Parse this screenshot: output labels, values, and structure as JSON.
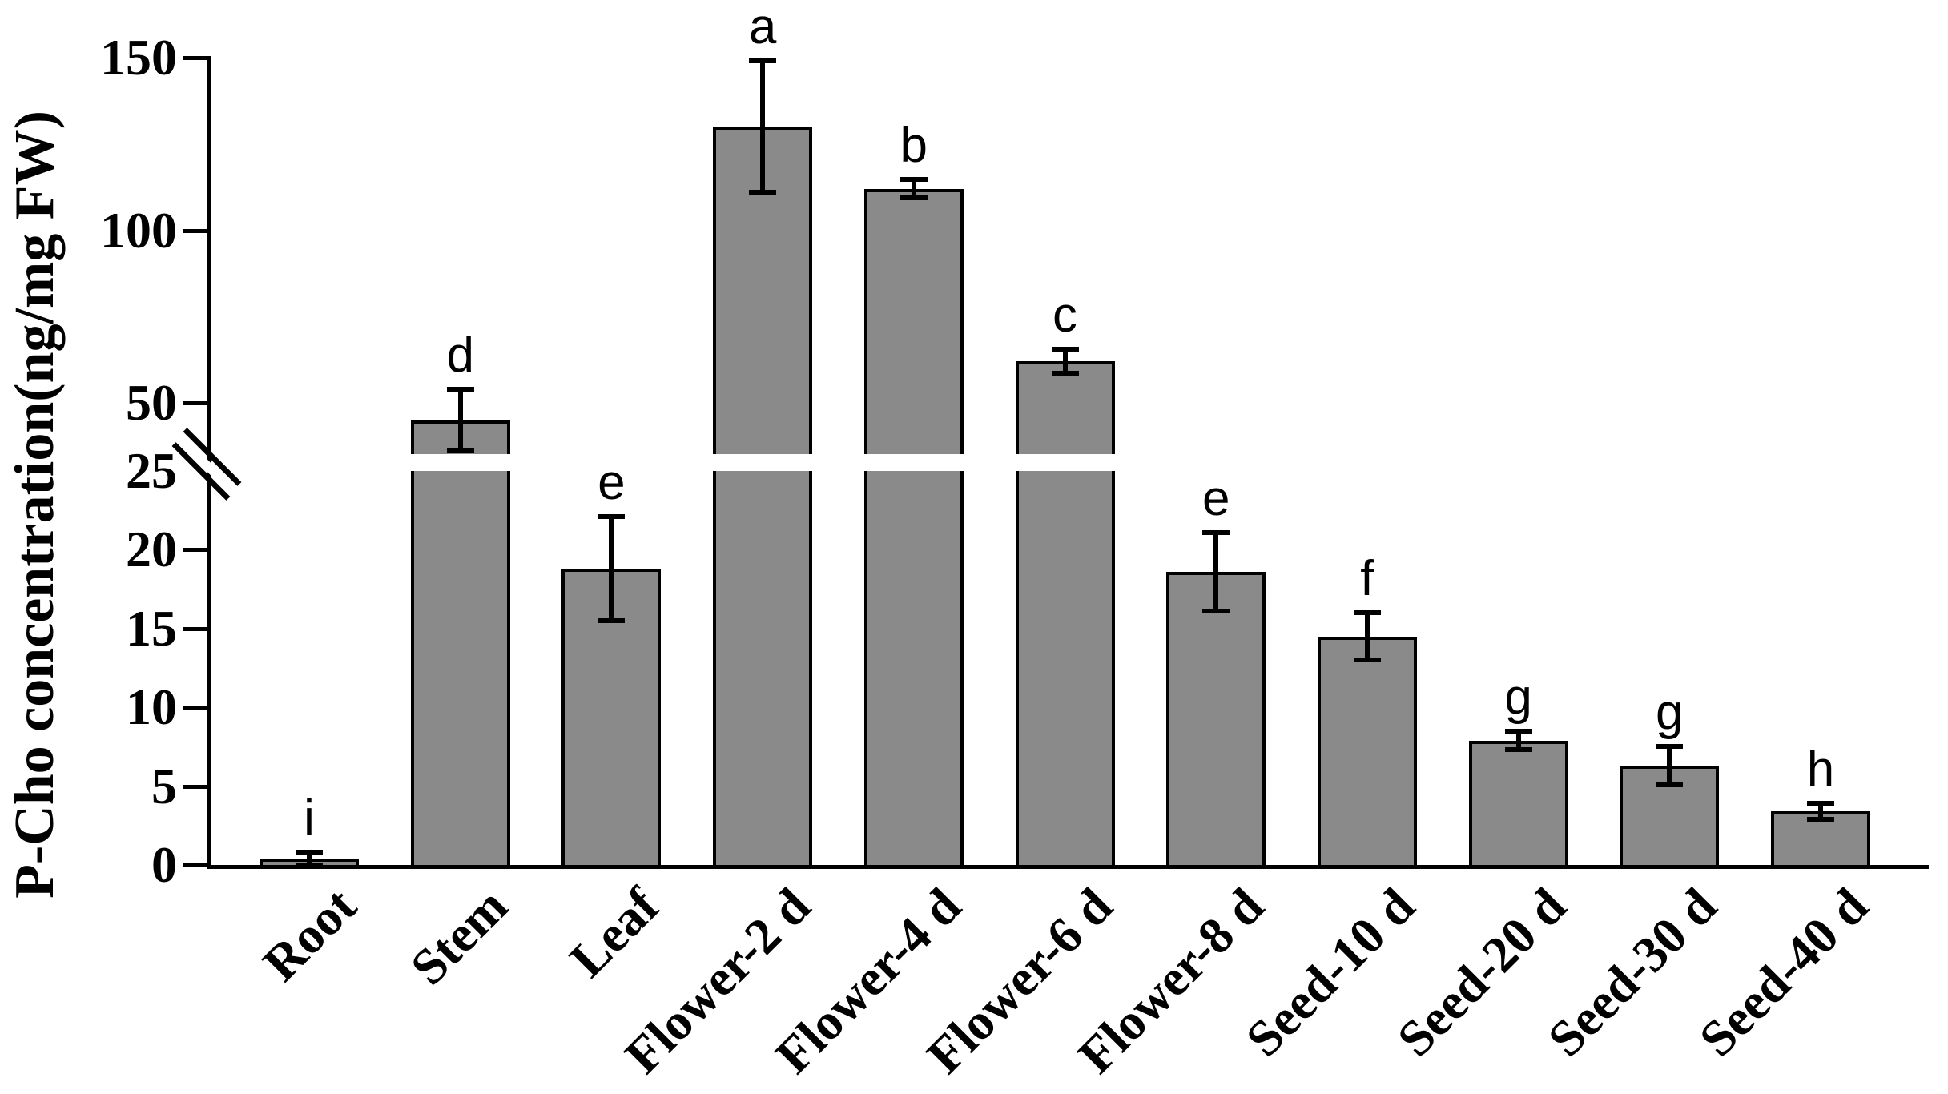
{
  "figure": {
    "background_color": "#ffffff",
    "bar_fill_color": "#8a8a8a",
    "bar_border_color": "#000000",
    "axis_color": "#000000"
  },
  "y_axis": {
    "title": "P-Cho concentration(ng/mg FW)",
    "upper_ticks": [
      150,
      100,
      50
    ],
    "break_label": "25",
    "lower_ticks": [
      20,
      15,
      10,
      5,
      0
    ]
  },
  "chart_data": {
    "type": "bar",
    "title": "",
    "xlabel": "",
    "ylabel": "P-Cho concentration(ng/mg FW)",
    "categories": [
      "Root",
      "Stem",
      "Leaf",
      "Flower-2 d",
      "Flower-4 d",
      "Flower-6 d",
      "Flower-8 d",
      "Seed-10 d",
      "Seed-20 d",
      "Seed-30 d",
      "Seed-40 d"
    ],
    "values": [
      0.4,
      45,
      18.8,
      130,
      112,
      62,
      18.6,
      14.5,
      7.9,
      6.3,
      3.4
    ],
    "errors": [
      0.4,
      9,
      3.3,
      19,
      2.7,
      3.5,
      2.5,
      1.5,
      0.6,
      1.2,
      0.5
    ],
    "sig_letters": [
      "i",
      "d",
      "e",
      "a",
      "b",
      "c",
      "e",
      "f",
      "g",
      "g",
      "h"
    ],
    "bar_color": "#8a8a8a",
    "grid": false,
    "legend": null,
    "axis_break": {
      "lower_range": [
        0,
        25
      ],
      "lower_tick_step": 5,
      "upper_ticks": [
        50,
        100,
        150
      ],
      "upper_range_top": 150,
      "break_value": 25
    }
  }
}
